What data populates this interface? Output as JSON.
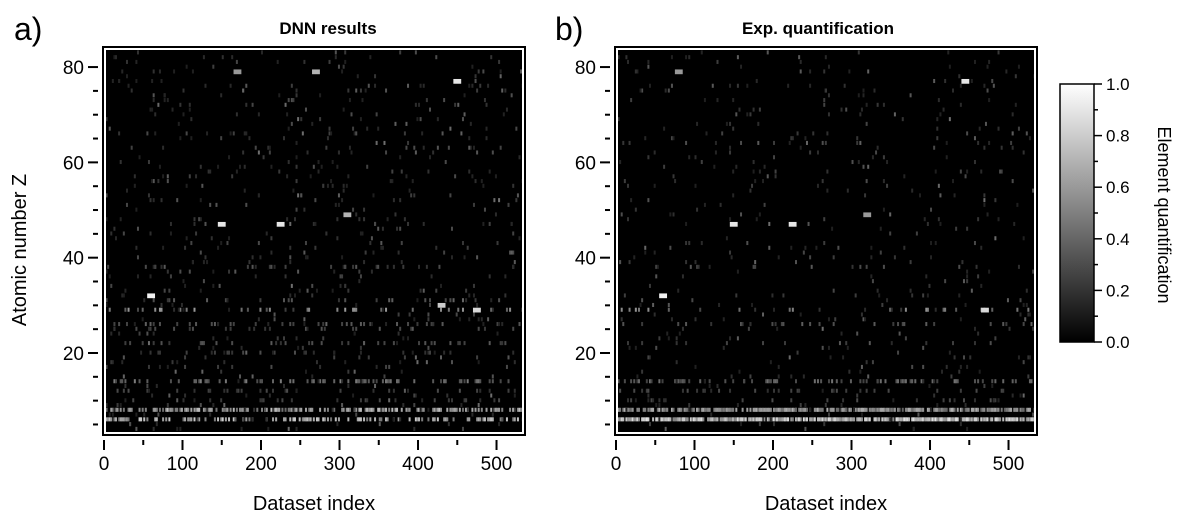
{
  "chart_data": [
    {
      "type": "heatmap",
      "panel_label": "a)",
      "title": "DNN results",
      "xlabel": "Dataset index",
      "ylabel": "Atomic number Z",
      "xlim": [
        0,
        535
      ],
      "ylim": [
        3,
        84
      ],
      "xticks": [
        "0",
        "100",
        "200",
        "300",
        "400",
        "500"
      ],
      "yticks": [
        "20",
        "40",
        "60",
        "80"
      ],
      "colormap": "grayscale",
      "background": "#000000",
      "bands": [
        {
          "z": 8,
          "intensity": 0.75,
          "density": 0.6
        },
        {
          "z": 6,
          "intensity": 0.8,
          "density": 0.45
        },
        {
          "z": 14,
          "intensity": 0.5,
          "density": 0.25
        },
        {
          "z": 29,
          "intensity": 0.6,
          "density": 0.1
        },
        {
          "z": 26,
          "intensity": 0.4,
          "density": 0.12
        },
        {
          "z": 22,
          "intensity": 0.35,
          "density": 0.1
        },
        {
          "z": 31,
          "intensity": 0.4,
          "density": 0.08
        },
        {
          "z": 38,
          "intensity": 0.35,
          "density": 0.08
        },
        {
          "z": 25,
          "intensity": 0.35,
          "density": 0.08
        },
        {
          "z": 20,
          "intensity": 0.3,
          "density": 0.08
        },
        {
          "z": 12,
          "intensity": 0.3,
          "density": 0.1
        },
        {
          "z": 10,
          "intensity": 0.3,
          "density": 0.08
        }
      ],
      "noise_density": 0.035,
      "spots": [
        {
          "index": 60,
          "z": 32,
          "value": 0.95
        },
        {
          "index": 150,
          "z": 47,
          "value": 0.9
        },
        {
          "index": 225,
          "z": 47,
          "value": 0.9
        },
        {
          "index": 450,
          "z": 77,
          "value": 0.9
        },
        {
          "index": 310,
          "z": 49,
          "value": 0.7
        },
        {
          "index": 430,
          "z": 30,
          "value": 0.8
        },
        {
          "index": 475,
          "z": 29,
          "value": 0.85
        },
        {
          "index": 270,
          "z": 79,
          "value": 0.7
        },
        {
          "index": 170,
          "z": 79,
          "value": 0.6
        }
      ]
    },
    {
      "type": "heatmap",
      "panel_label": "b)",
      "title": "Exp. quantification",
      "xlabel": "Dataset index",
      "ylabel": "",
      "xlim": [
        0,
        535
      ],
      "ylim": [
        3,
        84
      ],
      "xticks": [
        "0",
        "100",
        "200",
        "300",
        "400",
        "500"
      ],
      "yticks": [
        "20",
        "40",
        "60",
        "80"
      ],
      "colormap": "grayscale",
      "background": "#000000",
      "bands": [
        {
          "z": 8,
          "intensity": 0.7,
          "density": 0.8
        },
        {
          "z": 6,
          "intensity": 0.9,
          "density": 0.85
        },
        {
          "z": 14,
          "intensity": 0.45,
          "density": 0.25
        },
        {
          "z": 29,
          "intensity": 0.6,
          "density": 0.08
        },
        {
          "z": 26,
          "intensity": 0.4,
          "density": 0.1
        },
        {
          "z": 22,
          "intensity": 0.35,
          "density": 0.08
        },
        {
          "z": 38,
          "intensity": 0.35,
          "density": 0.06
        },
        {
          "z": 12,
          "intensity": 0.3,
          "density": 0.1
        },
        {
          "z": 10,
          "intensity": 0.3,
          "density": 0.07
        }
      ],
      "noise_density": 0.025,
      "spots": [
        {
          "index": 60,
          "z": 32,
          "value": 0.95
        },
        {
          "index": 150,
          "z": 47,
          "value": 0.9
        },
        {
          "index": 225,
          "z": 47,
          "value": 0.9
        },
        {
          "index": 445,
          "z": 77,
          "value": 0.9
        },
        {
          "index": 320,
          "z": 49,
          "value": 0.6
        },
        {
          "index": 470,
          "z": 29,
          "value": 0.85
        },
        {
          "index": 80,
          "z": 79,
          "value": 0.6
        }
      ]
    }
  ],
  "colorbar": {
    "label": "Element quantification",
    "range": [
      0.0,
      1.0
    ],
    "ticks": [
      "0.0",
      "0.2",
      "0.4",
      "0.6",
      "0.8",
      "1.0"
    ]
  }
}
